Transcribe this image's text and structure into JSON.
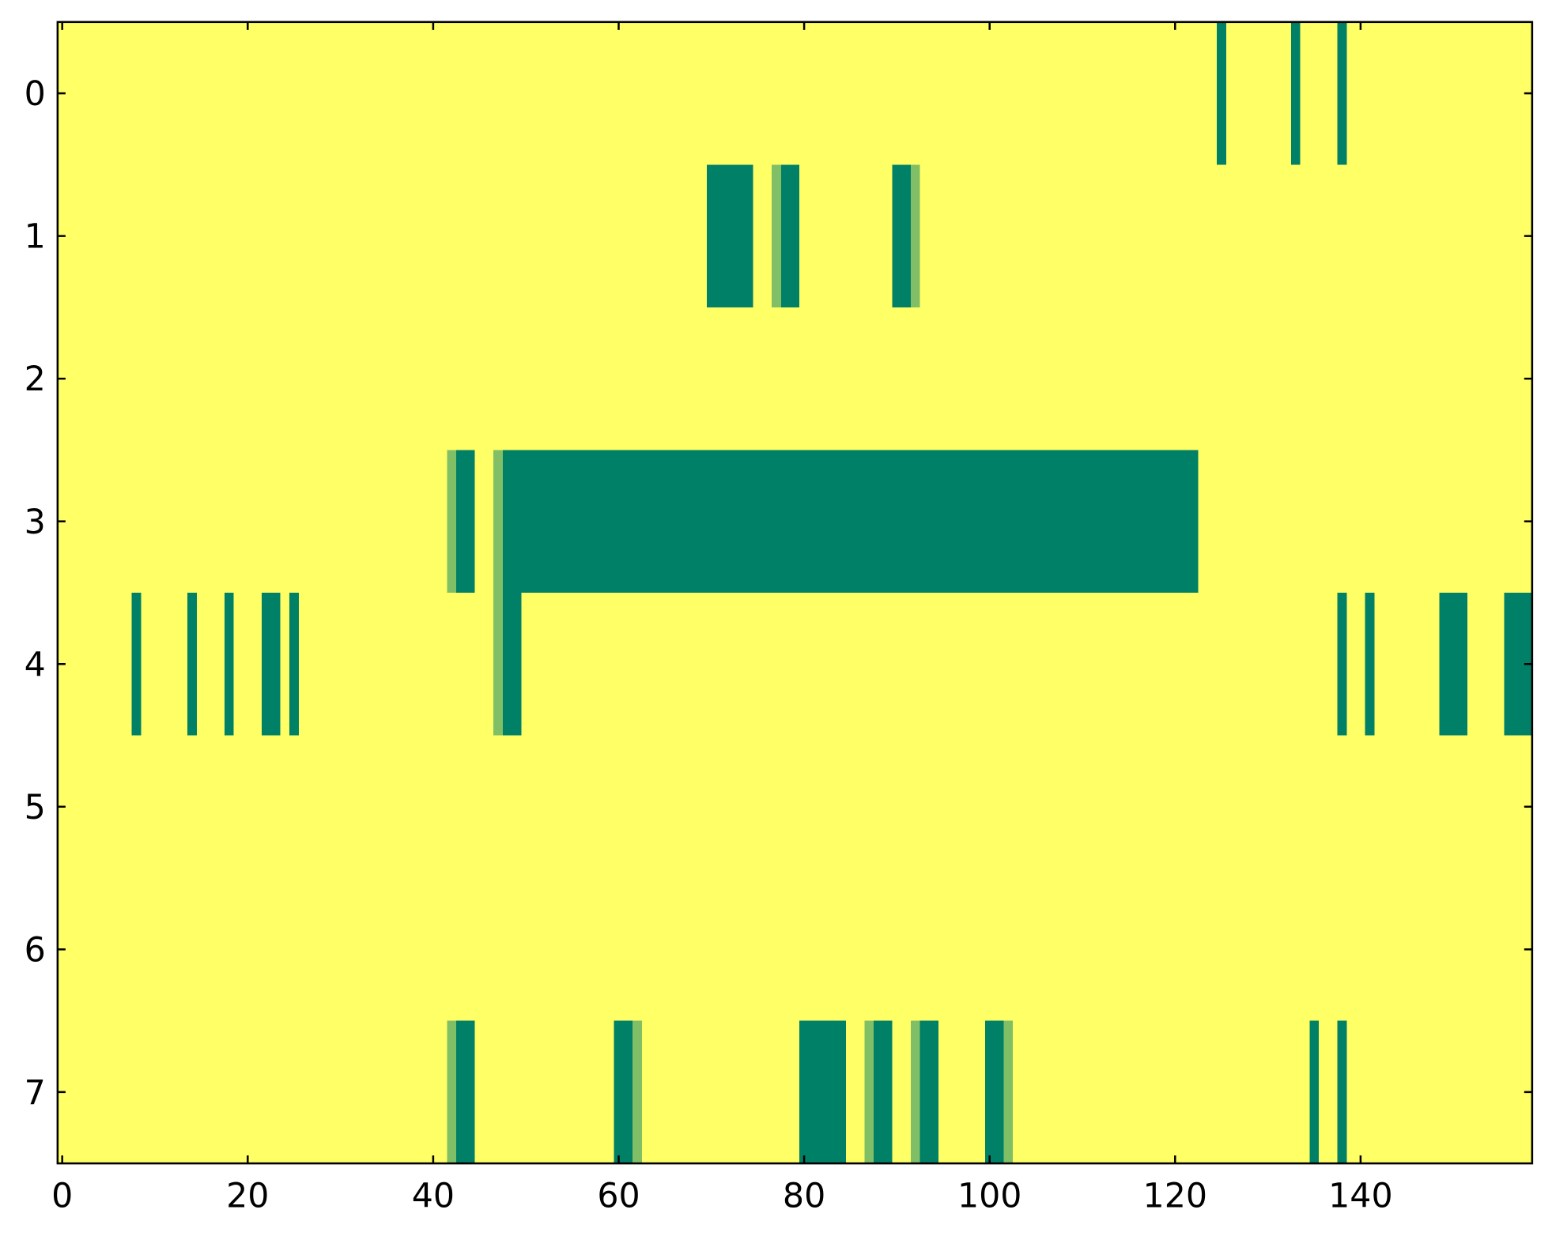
{
  "chart_data": {
    "type": "heatmap",
    "colormap": "summer",
    "clim": [
      0,
      1
    ],
    "xlim": [
      -0.5,
      158.5
    ],
    "ylim": [
      7.5,
      -0.5
    ],
    "xticks": [
      0,
      20,
      40,
      60,
      80,
      100,
      120,
      140
    ],
    "yticks": [
      0,
      1,
      2,
      3,
      4,
      5,
      6,
      7
    ],
    "values": [
      [
        1,
        1,
        1,
        1,
        1,
        1,
        1,
        1,
        1,
        1,
        1,
        1,
        1,
        1,
        1,
        1,
        1,
        1,
        1,
        1,
        1,
        1,
        1,
        1,
        1,
        1,
        1,
        1,
        1,
        1,
        1,
        1,
        1,
        1,
        1,
        1,
        1,
        1,
        1,
        1,
        1,
        1,
        1,
        1,
        1,
        1,
        1,
        1,
        1,
        1,
        1,
        1,
        1,
        1,
        1,
        1,
        1,
        1,
        1,
        1,
        1,
        1,
        1,
        1,
        1,
        1,
        1,
        1,
        1,
        1,
        1,
        1,
        1,
        1,
        1,
        1,
        1,
        1,
        1,
        1,
        1,
        1,
        1,
        1,
        1,
        1,
        1,
        1,
        1,
        1,
        1,
        1,
        1,
        1,
        1,
        1,
        1,
        1,
        1,
        1,
        1,
        1,
        1,
        1,
        1,
        1,
        1,
        1,
        1,
        1,
        1,
        1,
        1,
        1,
        1,
        1,
        1,
        1,
        1,
        1,
        1,
        1,
        1,
        1,
        1,
        0,
        1,
        1,
        1,
        1,
        1,
        1,
        1,
        0,
        1,
        1,
        1,
        1,
        0,
        1,
        1,
        1,
        1,
        1,
        1,
        1,
        1,
        1,
        1,
        1,
        1,
        1,
        1,
        1,
        1,
        1,
        1,
        1,
        1
      ],
      [
        1,
        1,
        1,
        1,
        1,
        1,
        1,
        1,
        1,
        1,
        1,
        1,
        1,
        1,
        1,
        1,
        1,
        1,
        1,
        1,
        1,
        1,
        1,
        1,
        1,
        1,
        1,
        1,
        1,
        1,
        1,
        1,
        1,
        1,
        1,
        1,
        1,
        1,
        1,
        1,
        1,
        1,
        1,
        1,
        1,
        1,
        1,
        1,
        1,
        1,
        1,
        1,
        1,
        1,
        1,
        1,
        1,
        1,
        1,
        1,
        1,
        1,
        1,
        1,
        1,
        1,
        1,
        1,
        1,
        1,
        0,
        0,
        0,
        0,
        0,
        1,
        1,
        0.5,
        0,
        0,
        1,
        1,
        1,
        1,
        1,
        1,
        1,
        1,
        1,
        1,
        0,
        0,
        0.5,
        1,
        1,
        1,
        1,
        1,
        1,
        1,
        1,
        1,
        1,
        1,
        1,
        1,
        1,
        1,
        1,
        1,
        1,
        1,
        1,
        1,
        1,
        1,
        1,
        1,
        1,
        1,
        1,
        1,
        1,
        1,
        1,
        1,
        1,
        1,
        1,
        1,
        1,
        1,
        1,
        1,
        1,
        1,
        1,
        1,
        1,
        1,
        1,
        1,
        1,
        1,
        1,
        1,
        1,
        1,
        1,
        1,
        1,
        1,
        1,
        1,
        1,
        1,
        1,
        1,
        1
      ],
      [
        1,
        1,
        1,
        1,
        1,
        1,
        1,
        1,
        1,
        1,
        1,
        1,
        1,
        1,
        1,
        1,
        1,
        1,
        1,
        1,
        1,
        1,
        1,
        1,
        1,
        1,
        1,
        1,
        1,
        1,
        1,
        1,
        1,
        1,
        1,
        1,
        1,
        1,
        1,
        1,
        1,
        1,
        1,
        1,
        1,
        1,
        1,
        1,
        1,
        1,
        1,
        1,
        1,
        1,
        1,
        1,
        1,
        1,
        1,
        1,
        1,
        1,
        1,
        1,
        1,
        1,
        1,
        1,
        1,
        1,
        1,
        1,
        1,
        1,
        1,
        1,
        1,
        1,
        1,
        1,
        1,
        1,
        1,
        1,
        1,
        1,
        1,
        1,
        1,
        1,
        1,
        1,
        1,
        1,
        1,
        1,
        1,
        1,
        1,
        1,
        1,
        1,
        1,
        1,
        1,
        1,
        1,
        1,
        1,
        1,
        1,
        1,
        1,
        1,
        1,
        1,
        1,
        1,
        1,
        1,
        1,
        1,
        1,
        1,
        1,
        1,
        1,
        1,
        1,
        1,
        1,
        1,
        1,
        1,
        1,
        1,
        1,
        1,
        1,
        1,
        1,
        1,
        1,
        1,
        1,
        1,
        1,
        1,
        1,
        1,
        1,
        1,
        1,
        1,
        1,
        1,
        1,
        1,
        1
      ],
      [
        1,
        1,
        1,
        1,
        1,
        1,
        1,
        1,
        1,
        1,
        1,
        1,
        1,
        1,
        1,
        1,
        1,
        1,
        1,
        1,
        1,
        1,
        1,
        1,
        1,
        1,
        1,
        1,
        1,
        1,
        1,
        1,
        1,
        1,
        1,
        1,
        1,
        1,
        1,
        1,
        1,
        1,
        0.5,
        0,
        0,
        1,
        1,
        0.5,
        0,
        0,
        0,
        0,
        0,
        0,
        0,
        0,
        0,
        0,
        0,
        0,
        0,
        0,
        0,
        0,
        0,
        0,
        0,
        0,
        0,
        0,
        0,
        0,
        0,
        0,
        0,
        0,
        0,
        0,
        0,
        0,
        0,
        0,
        0,
        0,
        0,
        0,
        0,
        0,
        0,
        0,
        0,
        0,
        0,
        0,
        0,
        0,
        0,
        0,
        0,
        0,
        0,
        0,
        0,
        0,
        0,
        0,
        0,
        0,
        0,
        0,
        0,
        0,
        0,
        0,
        0,
        0,
        0,
        0,
        0,
        0,
        0,
        0,
        0,
        1,
        1,
        1,
        1,
        1,
        1,
        1,
        1,
        1,
        1,
        1,
        1,
        1,
        1,
        1,
        1,
        1,
        1,
        1,
        1,
        1,
        1,
        1,
        1,
        1,
        1,
        1,
        1,
        1,
        1,
        1,
        1,
        1,
        1,
        1,
        1
      ],
      [
        1,
        1,
        1,
        1,
        1,
        1,
        1,
        1,
        0,
        1,
        1,
        1,
        1,
        1,
        0,
        1,
        1,
        1,
        0,
        1,
        1,
        1,
        0,
        0,
        1,
        0,
        1,
        1,
        1,
        1,
        1,
        1,
        1,
        1,
        1,
        1,
        1,
        1,
        1,
        1,
        1,
        1,
        1,
        1,
        1,
        1,
        1,
        0.5,
        0,
        0,
        1,
        1,
        1,
        1,
        1,
        1,
        1,
        1,
        1,
        1,
        1,
        1,
        1,
        1,
        1,
        1,
        1,
        1,
        1,
        1,
        1,
        1,
        1,
        1,
        1,
        1,
        1,
        1,
        1,
        1,
        1,
        1,
        1,
        1,
        1,
        1,
        1,
        1,
        1,
        1,
        1,
        1,
        1,
        1,
        1,
        1,
        1,
        1,
        1,
        1,
        1,
        1,
        1,
        1,
        1,
        1,
        1,
        1,
        1,
        1,
        1,
        1,
        1,
        1,
        1,
        1,
        1,
        1,
        1,
        1,
        1,
        1,
        1,
        1,
        1,
        1,
        1,
        1,
        1,
        1,
        1,
        1,
        1,
        1,
        1,
        1,
        1,
        1,
        0,
        1,
        1,
        0,
        1,
        1,
        1,
        1,
        1,
        1,
        1,
        0,
        0,
        0,
        1,
        1,
        1,
        1,
        0,
        0,
        0
      ],
      [
        1,
        1,
        1,
        1,
        1,
        1,
        1,
        1,
        1,
        1,
        1,
        1,
        1,
        1,
        1,
        1,
        1,
        1,
        1,
        1,
        1,
        1,
        1,
        1,
        1,
        1,
        1,
        1,
        1,
        1,
        1,
        1,
        1,
        1,
        1,
        1,
        1,
        1,
        1,
        1,
        1,
        1,
        1,
        1,
        1,
        1,
        1,
        1,
        1,
        1,
        1,
        1,
        1,
        1,
        1,
        1,
        1,
        1,
        1,
        1,
        1,
        1,
        1,
        1,
        1,
        1,
        1,
        1,
        1,
        1,
        1,
        1,
        1,
        1,
        1,
        1,
        1,
        1,
        1,
        1,
        1,
        1,
        1,
        1,
        1,
        1,
        1,
        1,
        1,
        1,
        1,
        1,
        1,
        1,
        1,
        1,
        1,
        1,
        1,
        1,
        1,
        1,
        1,
        1,
        1,
        1,
        1,
        1,
        1,
        1,
        1,
        1,
        1,
        1,
        1,
        1,
        1,
        1,
        1,
        1,
        1,
        1,
        1,
        1,
        1,
        1,
        1,
        1,
        1,
        1,
        1,
        1,
        1,
        1,
        1,
        1,
        1,
        1,
        1,
        1,
        1,
        1,
        1,
        1,
        1,
        1,
        1,
        1,
        1,
        1,
        1,
        1,
        1,
        1,
        1,
        1,
        1,
        1,
        1
      ],
      [
        1,
        1,
        1,
        1,
        1,
        1,
        1,
        1,
        1,
        1,
        1,
        1,
        1,
        1,
        1,
        1,
        1,
        1,
        1,
        1,
        1,
        1,
        1,
        1,
        1,
        1,
        1,
        1,
        1,
        1,
        1,
        1,
        1,
        1,
        1,
        1,
        1,
        1,
        1,
        1,
        1,
        1,
        1,
        1,
        1,
        1,
        1,
        1,
        1,
        1,
        1,
        1,
        1,
        1,
        1,
        1,
        1,
        1,
        1,
        1,
        1,
        1,
        1,
        1,
        1,
        1,
        1,
        1,
        1,
        1,
        1,
        1,
        1,
        1,
        1,
        1,
        1,
        1,
        1,
        1,
        1,
        1,
        1,
        1,
        1,
        1,
        1,
        1,
        1,
        1,
        1,
        1,
        1,
        1,
        1,
        1,
        1,
        1,
        1,
        1,
        1,
        1,
        1,
        1,
        1,
        1,
        1,
        1,
        1,
        1,
        1,
        1,
        1,
        1,
        1,
        1,
        1,
        1,
        1,
        1,
        1,
        1,
        1,
        1,
        1,
        1,
        1,
        1,
        1,
        1,
        1,
        1,
        1,
        1,
        1,
        1,
        1,
        1,
        1,
        1,
        1,
        1,
        1,
        1,
        1,
        1,
        1,
        1,
        1,
        1,
        1,
        1,
        1,
        1,
        1,
        1,
        1,
        1,
        1
      ],
      [
        1,
        1,
        1,
        1,
        1,
        1,
        1,
        1,
        1,
        1,
        1,
        1,
        1,
        1,
        1,
        1,
        1,
        1,
        1,
        1,
        1,
        1,
        1,
        1,
        1,
        1,
        1,
        1,
        1,
        1,
        1,
        1,
        1,
        1,
        1,
        1,
        1,
        1,
        1,
        1,
        1,
        1,
        0.5,
        0,
        0,
        1,
        1,
        1,
        1,
        1,
        1,
        1,
        1,
        1,
        1,
        1,
        1,
        1,
        1,
        1,
        0,
        0,
        0.5,
        1,
        1,
        1,
        1,
        1,
        1,
        1,
        1,
        1,
        1,
        1,
        1,
        1,
        1,
        1,
        1,
        1,
        0,
        0,
        0,
        0,
        0,
        1,
        1,
        0.5,
        0,
        0,
        1,
        1,
        0.5,
        0,
        0,
        1,
        1,
        1,
        1,
        1,
        0,
        0,
        0.5,
        1,
        1,
        1,
        1,
        1,
        1,
        1,
        1,
        1,
        1,
        1,
        1,
        1,
        1,
        1,
        1,
        1,
        1,
        1,
        1,
        1,
        1,
        1,
        1,
        1,
        1,
        1,
        1,
        1,
        1,
        1,
        1,
        0,
        1,
        1,
        0,
        1,
        1,
        1,
        1,
        1,
        1,
        1,
        1,
        1,
        1,
        1,
        1,
        1,
        1,
        1,
        1,
        1,
        1,
        1,
        1
      ]
    ]
  }
}
